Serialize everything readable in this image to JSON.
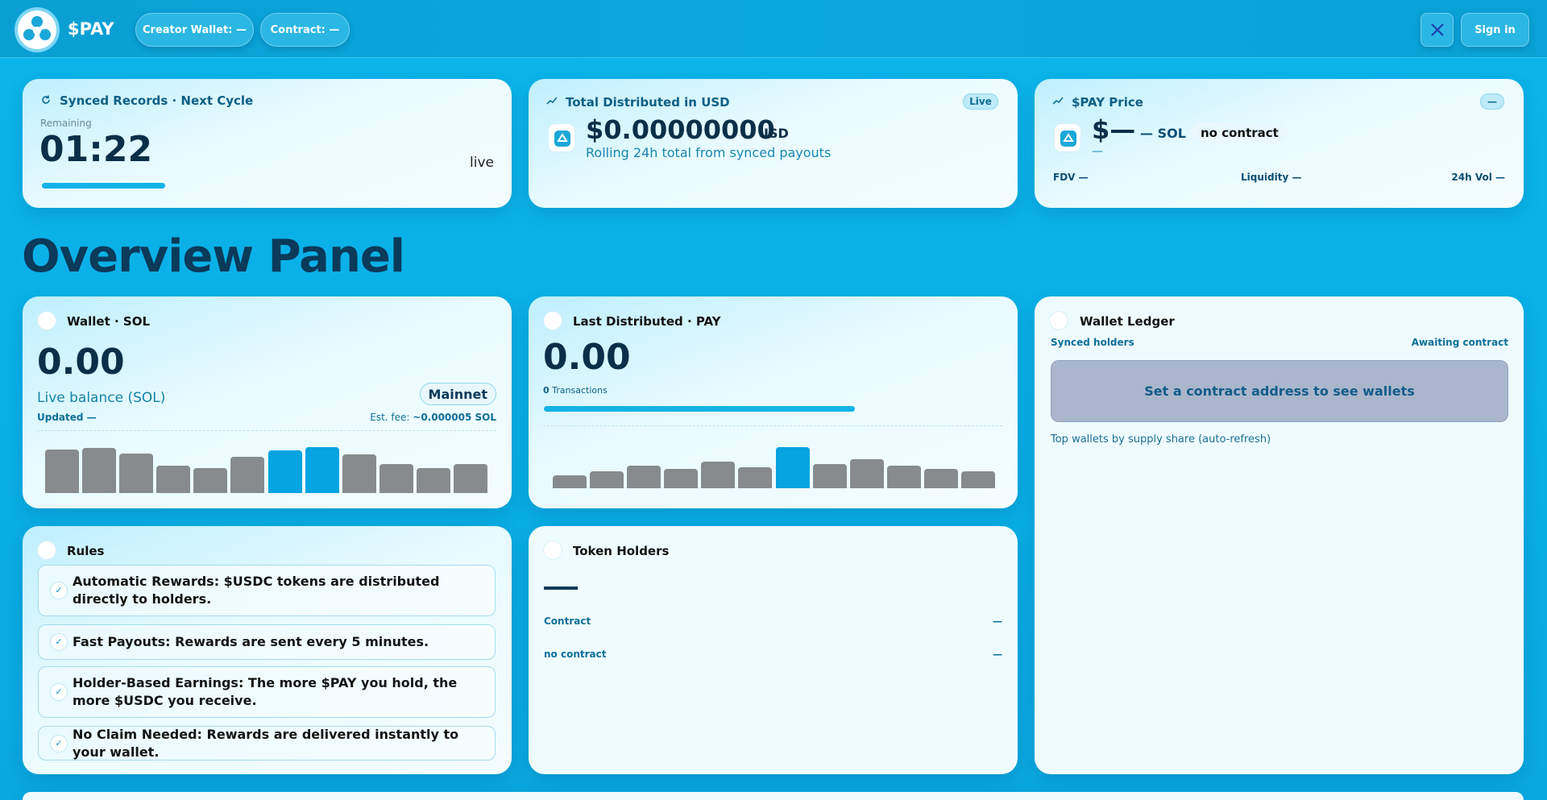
{
  "header": {
    "brand": "$PAY",
    "creator_wallet": "Creator Wallet: —",
    "contract": "Contract: —",
    "sign_in": "Sign in"
  },
  "synced_card": {
    "title": "Synced Records · Next Cycle",
    "remaining_label": "Remaining",
    "timer": "01:22",
    "status": "live"
  },
  "distributed_card": {
    "title": "Total Distributed in USD",
    "badge": "Live",
    "amount": "$0.00000000",
    "unit": "USD",
    "subtitle": "Rolling 24h total from synced payouts"
  },
  "price_card": {
    "title": "$PAY Price",
    "badge": "—",
    "price": "$—",
    "sol": "— SOL",
    "contract_badge": "no contract",
    "change": "—",
    "fdv": "FDV —",
    "liquidity": "Liquidity —",
    "volume": "24h Vol —"
  },
  "heading": "Overview Panel",
  "wallet_card": {
    "title": "Wallet · SOL",
    "value": "0.00",
    "label": "Live balance (SOL)",
    "network": "Mainnet",
    "updated": "Updated —",
    "fee_label": "Est. fee:",
    "fee_value": "~0.000005 SOL"
  },
  "last_distributed_card": {
    "title": "Last Distributed · PAY",
    "value": "0.00",
    "tx_count": "0",
    "tx_label": "Transactions"
  },
  "ledger_card": {
    "title": "Wallet Ledger",
    "left_label": "Synced holders",
    "right_label": "Awaiting contract",
    "notice": "Set a contract address to see wallets",
    "footer": "Top wallets by supply share (auto-refresh)"
  },
  "rules_card": {
    "title": "Rules",
    "items": [
      "Automatic Rewards: $USDC tokens are distributed directly to holders.",
      "Fast Payouts: Rewards are sent every 5 minutes.",
      "Holder-Based Earnings: The more $PAY you hold, the more $USDC you receive.",
      "No Claim Needed: Rewards are delivered instantly to your wallet."
    ]
  },
  "holders_card": {
    "title": "Token Holders",
    "rows": [
      {
        "label": "Contract",
        "value": "—"
      },
      {
        "label": "no contract",
        "value": "—"
      }
    ]
  }
}
